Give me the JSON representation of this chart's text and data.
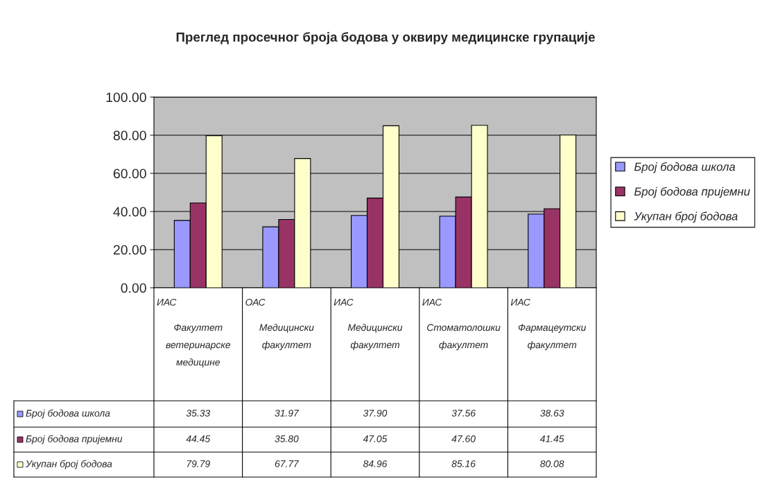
{
  "chart_data": {
    "type": "bar",
    "title": "Преглед просечног броја бодова у оквиру медицинске групације",
    "categories": [
      "ИАС\nФакултет\nветеринарске\nмедицине",
      "ОАС\nМедицински\nфакултет",
      "ИАС\nМедицински\nфакултет",
      "ИАС\nСтоматолошки\nфакултет",
      "ИАС\nФармацеутски\nфакултет"
    ],
    "series": [
      {
        "name": "Број бодова школа",
        "color": "#9999ff",
        "values": [
          35.33,
          31.97,
          37.9,
          37.56,
          38.63
        ],
        "value_labels": [
          "35.33",
          "31.97",
          "37.90",
          "37.56",
          "38.63"
        ]
      },
      {
        "name": "Број бодова пријемни",
        "color": "#993366",
        "values": [
          44.45,
          35.8,
          47.05,
          47.6,
          41.45
        ],
        "value_labels": [
          "44.45",
          "35.80",
          "47.05",
          "47.60",
          "41.45"
        ]
      },
      {
        "name": "Укупан број бодова",
        "color": "#ffffcc",
        "values": [
          79.79,
          67.77,
          84.96,
          85.16,
          80.08
        ],
        "value_labels": [
          "79.79",
          "67.77",
          "84.96",
          "85.16",
          "80.08"
        ]
      }
    ],
    "ylim": [
      0,
      100
    ],
    "yticks": [
      {
        "value": 0,
        "label": "0.00"
      },
      {
        "value": 20,
        "label": "20.00"
      },
      {
        "value": 40,
        "label": "40.00"
      },
      {
        "value": 60,
        "label": "60.00"
      },
      {
        "value": 80,
        "label": "80.00"
      },
      {
        "value": 100,
        "label": "100.00"
      }
    ],
    "grid": "y",
    "legend": "right"
  }
}
